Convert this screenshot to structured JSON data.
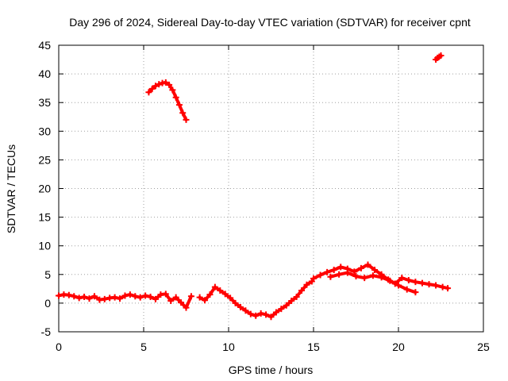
{
  "chart_data": {
    "type": "scatter",
    "title": "Day 296 of 2024, Sidereal Day-to-day VTEC variation (SDTVAR) for receiver cpnt",
    "xlabel": "GPS time / hours",
    "ylabel": "SDTVAR / TECUs",
    "xlim": [
      0,
      25
    ],
    "ylim": [
      -5,
      45
    ],
    "xticks": [
      0,
      5,
      10,
      15,
      20,
      25
    ],
    "yticks": [
      -5,
      0,
      5,
      10,
      15,
      20,
      25,
      30,
      35,
      40,
      45
    ],
    "grid": true,
    "legend": "none",
    "series": [
      {
        "name": "SDTVAR",
        "color": "#ff0000",
        "marker": "plus",
        "segments": [
          {
            "x": [
              0.0,
              0.3,
              0.6,
              0.9,
              1.2,
              1.5,
              1.8,
              2.1,
              2.4,
              2.7,
              3.0,
              3.3,
              3.6,
              3.9,
              4.2,
              4.5,
              4.8,
              5.1,
              5.4,
              5.7,
              6.0,
              6.3,
              6.6,
              6.9,
              7.2,
              7.5,
              7.8
            ],
            "y": [
              1.3,
              1.5,
              1.4,
              1.2,
              0.9,
              1.1,
              0.8,
              1.2,
              0.6,
              0.7,
              0.9,
              1.0,
              0.8,
              1.3,
              1.5,
              1.2,
              1.0,
              1.3,
              1.1,
              0.7,
              1.5,
              1.6,
              0.4,
              1.0,
              0.1,
              -0.8,
              1.2
            ]
          },
          {
            "x": [
              8.3,
              8.6,
              8.9,
              9.2,
              9.5,
              9.8,
              10.1,
              10.4,
              10.7,
              11.0,
              11.3,
              11.6,
              11.9,
              12.2,
              12.5,
              12.8,
              13.1,
              13.4,
              13.7,
              14.0,
              14.3,
              14.6,
              14.9
            ],
            "y": [
              1.0,
              0.5,
              1.5,
              2.8,
              2.2,
              1.6,
              0.9,
              0.0,
              -0.7,
              -1.3,
              -1.9,
              -2.2,
              -1.8,
              -2.0,
              -2.4,
              -1.6,
              -1.0,
              -0.4,
              0.4,
              1.1,
              2.2,
              3.2,
              3.8
            ]
          },
          {
            "x": [
              15.0,
              15.4,
              15.8,
              16.2,
              16.6,
              17.0,
              17.4,
              17.8,
              18.2,
              18.6,
              19.0,
              19.4,
              19.8,
              20.2,
              20.6,
              21.0,
              21.4,
              21.8,
              22.2,
              22.6,
              22.9
            ],
            "y": [
              4.3,
              4.9,
              5.4,
              5.8,
              6.3,
              6.0,
              5.5,
              6.1,
              6.7,
              5.8,
              5.0,
              4.1,
              3.4,
              4.4,
              4.0,
              3.7,
              3.5,
              3.3,
              3.1,
              2.8,
              2.6
            ]
          },
          {
            "x": [
              16.0,
              16.5,
              17.0,
              17.5,
              18.0,
              18.5,
              19.0,
              19.5,
              20.0,
              20.5,
              21.0
            ],
            "y": [
              4.6,
              5.0,
              5.3,
              4.7,
              4.4,
              4.8,
              4.5,
              3.9,
              3.1,
              2.4,
              1.9
            ]
          },
          {
            "x": [
              5.3,
              5.5,
              5.7,
              5.9,
              6.1,
              6.3,
              6.5,
              6.7,
              6.9,
              7.1,
              7.3,
              7.5
            ],
            "y": [
              36.8,
              37.4,
              37.9,
              38.2,
              38.4,
              38.5,
              38.1,
              37.2,
              35.9,
              34.6,
              33.2,
              32.0
            ]
          },
          {
            "x": [
              22.2,
              22.3,
              22.4,
              22.5
            ],
            "y": [
              42.5,
              42.8,
              43.0,
              43.2
            ]
          }
        ]
      }
    ]
  }
}
